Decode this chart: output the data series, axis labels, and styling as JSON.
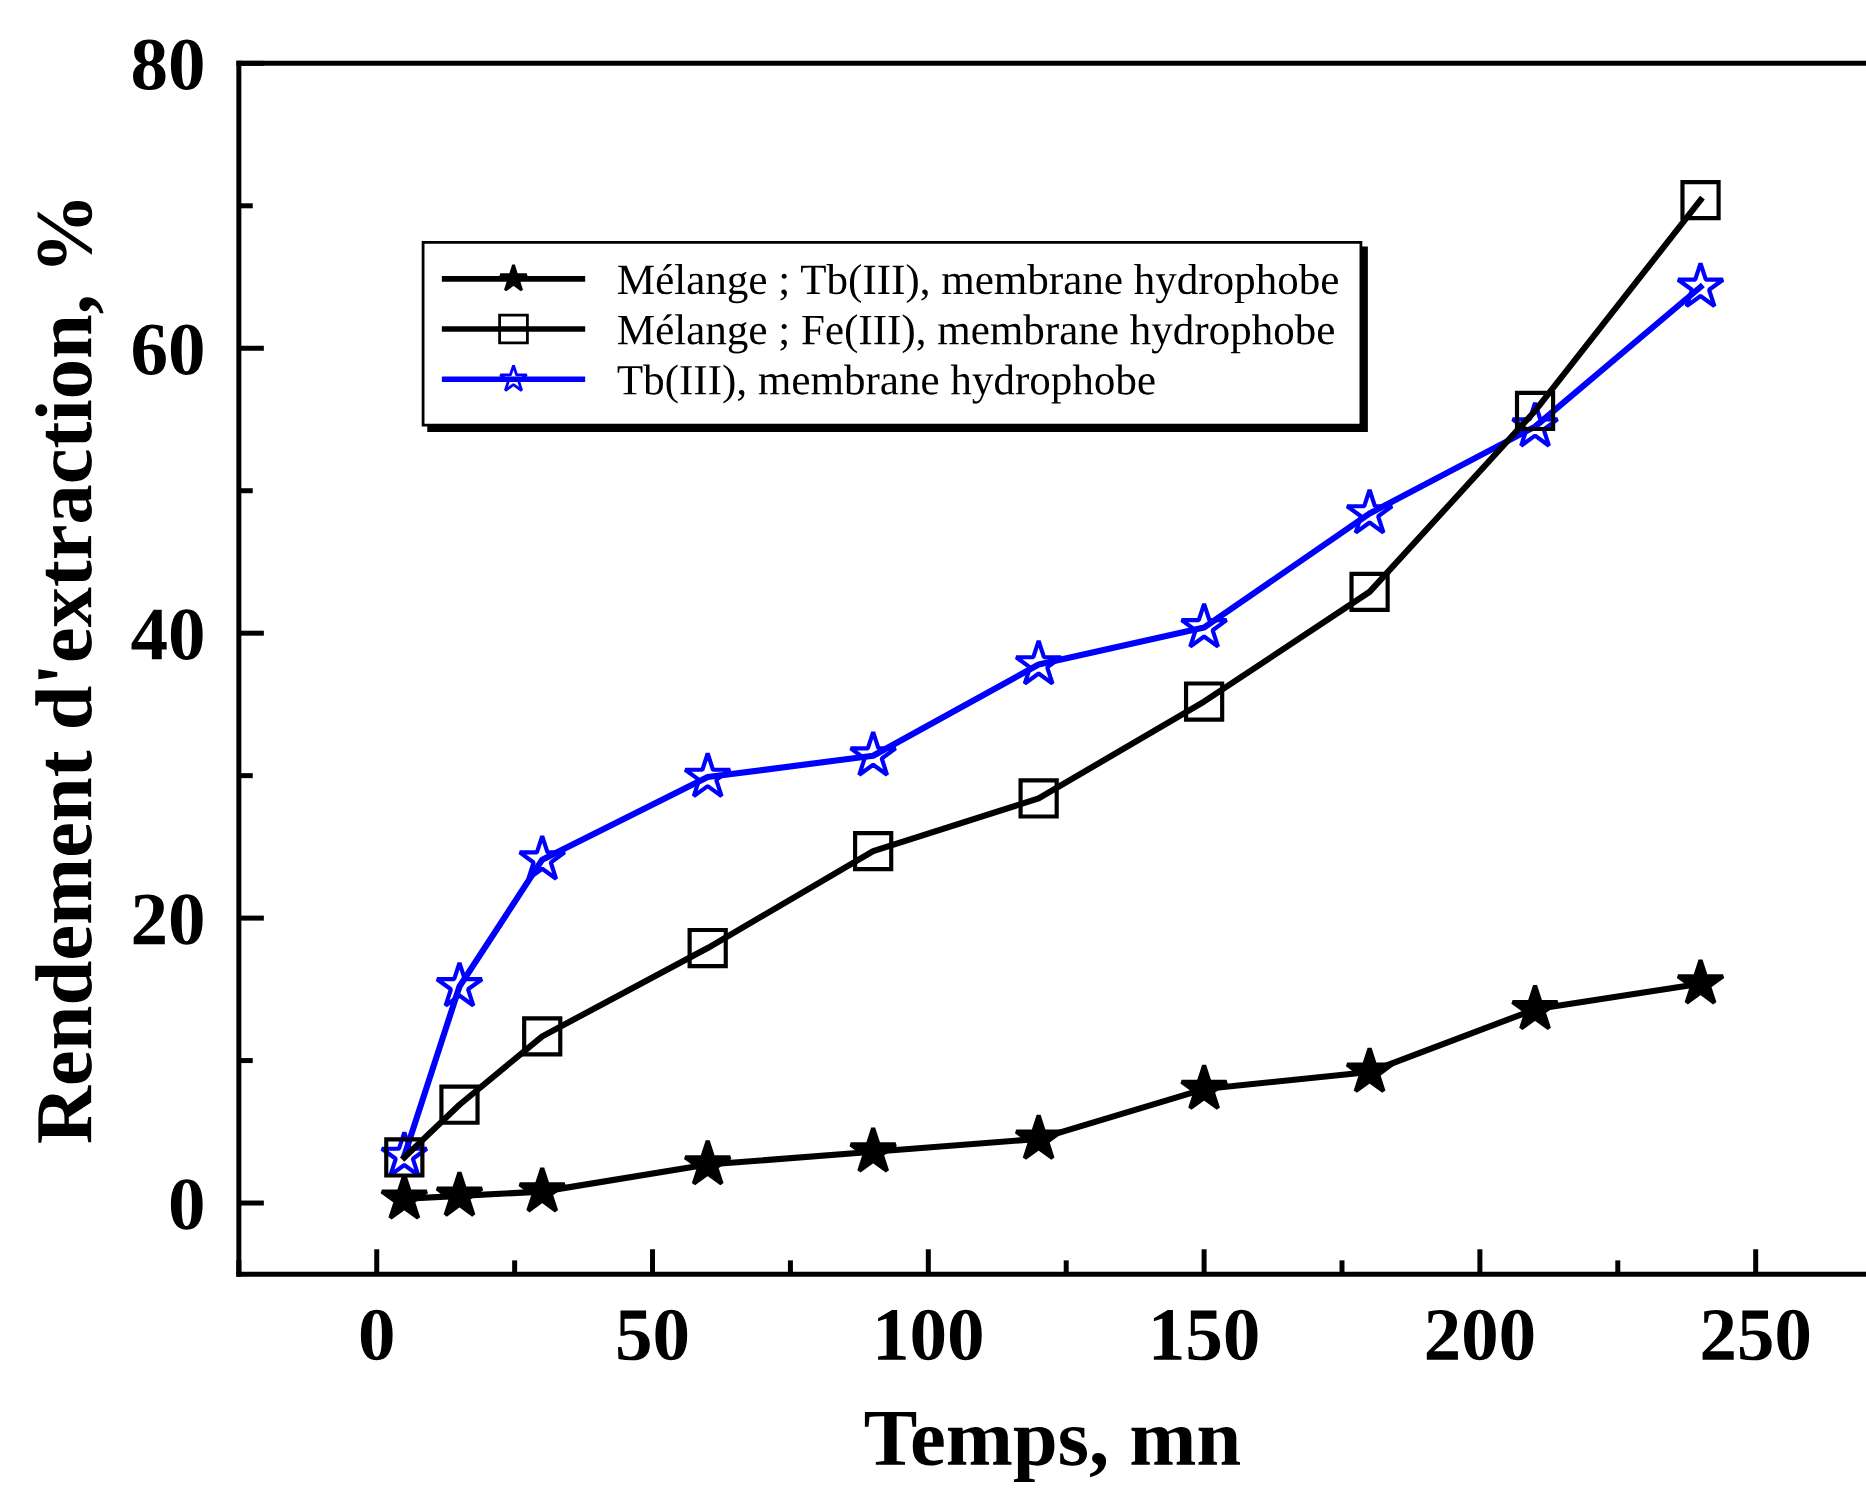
{
  "chart_data": {
    "type": "line",
    "xlabel": "Temps, mn",
    "ylabel": "Rendement d'extraction, %",
    "x": [
      5,
      15,
      30,
      60,
      90,
      120,
      150,
      180,
      210,
      240
    ],
    "series": [
      {
        "name": "Mélange ; Tb(III), membrane hydrophobe",
        "color": "#000000",
        "marker": "star",
        "values": [
          0.3,
          0.5,
          0.8,
          2.7,
          3.6,
          4.5,
          8.0,
          9.2,
          13.6,
          15.4
        ]
      },
      {
        "name": "Mélange ; Fe(III), membrane hydrophobe",
        "color": "#000000",
        "marker": "square",
        "values": [
          3.2,
          6.9,
          11.7,
          17.9,
          24.7,
          28.4,
          35.2,
          42.9,
          55.6,
          70.4
        ]
      },
      {
        "name": "Tb(III), membrane hydrophobe",
        "color": "#0000ff",
        "marker": "star",
        "values": [
          3.3,
          15.2,
          24.1,
          29.9,
          31.4,
          37.8,
          40.4,
          48.4,
          54.5,
          64.3
        ]
      }
    ],
    "xlim": [
      -25,
      270
    ],
    "ylim": [
      -5,
      80
    ],
    "xticks": [
      0,
      50,
      100,
      150,
      200,
      250
    ],
    "yticks": [
      0,
      20,
      40,
      60,
      80
    ],
    "grid": false,
    "legend": "top left",
    "line_style": "solid"
  }
}
